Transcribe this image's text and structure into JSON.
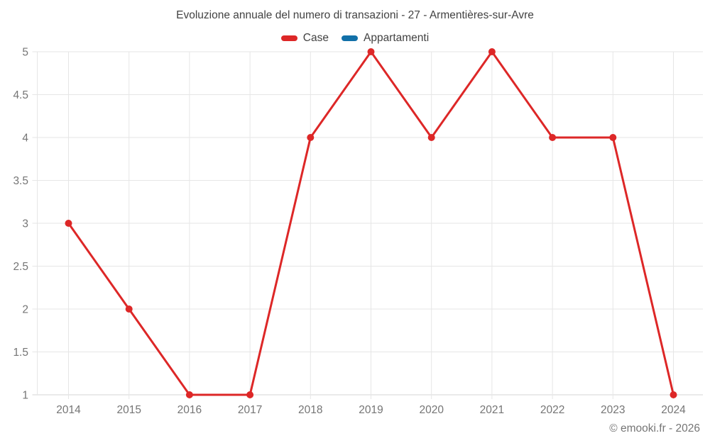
{
  "title": "Evoluzione annuale del numero di transazioni - 27 - Armentières-sur-Avre",
  "legend": [
    {
      "label": "Case",
      "color": "#dd2727"
    },
    {
      "label": "Appartamenti",
      "color": "#1170a8"
    }
  ],
  "watermark": "© emooki.fr - 2026",
  "colors": {
    "grid": "#e6e6e6",
    "axis_line": "#d6d6d6",
    "tick_text": "#757575",
    "title_text": "#424242",
    "background": "#ffffff"
  },
  "chart_data": {
    "type": "line",
    "title": "Evoluzione annuale del numero di transazioni - 27 - Armentières-sur-Avre",
    "categories": [
      "2014",
      "2015",
      "2016",
      "2017",
      "2018",
      "2019",
      "2020",
      "2021",
      "2022",
      "2023",
      "2024"
    ],
    "series": [
      {
        "name": "Case",
        "color": "#dd2727",
        "values": [
          3,
          2,
          1,
          1,
          4,
          5,
          4,
          5,
          4,
          4,
          1
        ]
      },
      {
        "name": "Appartamenti",
        "color": "#1170a8",
        "values": []
      }
    ],
    "xlabel": "",
    "ylabel": "",
    "ylim": [
      1,
      5
    ],
    "ytick_step": 0.5,
    "grid": true,
    "legend_position": "top",
    "marker": "circle"
  }
}
